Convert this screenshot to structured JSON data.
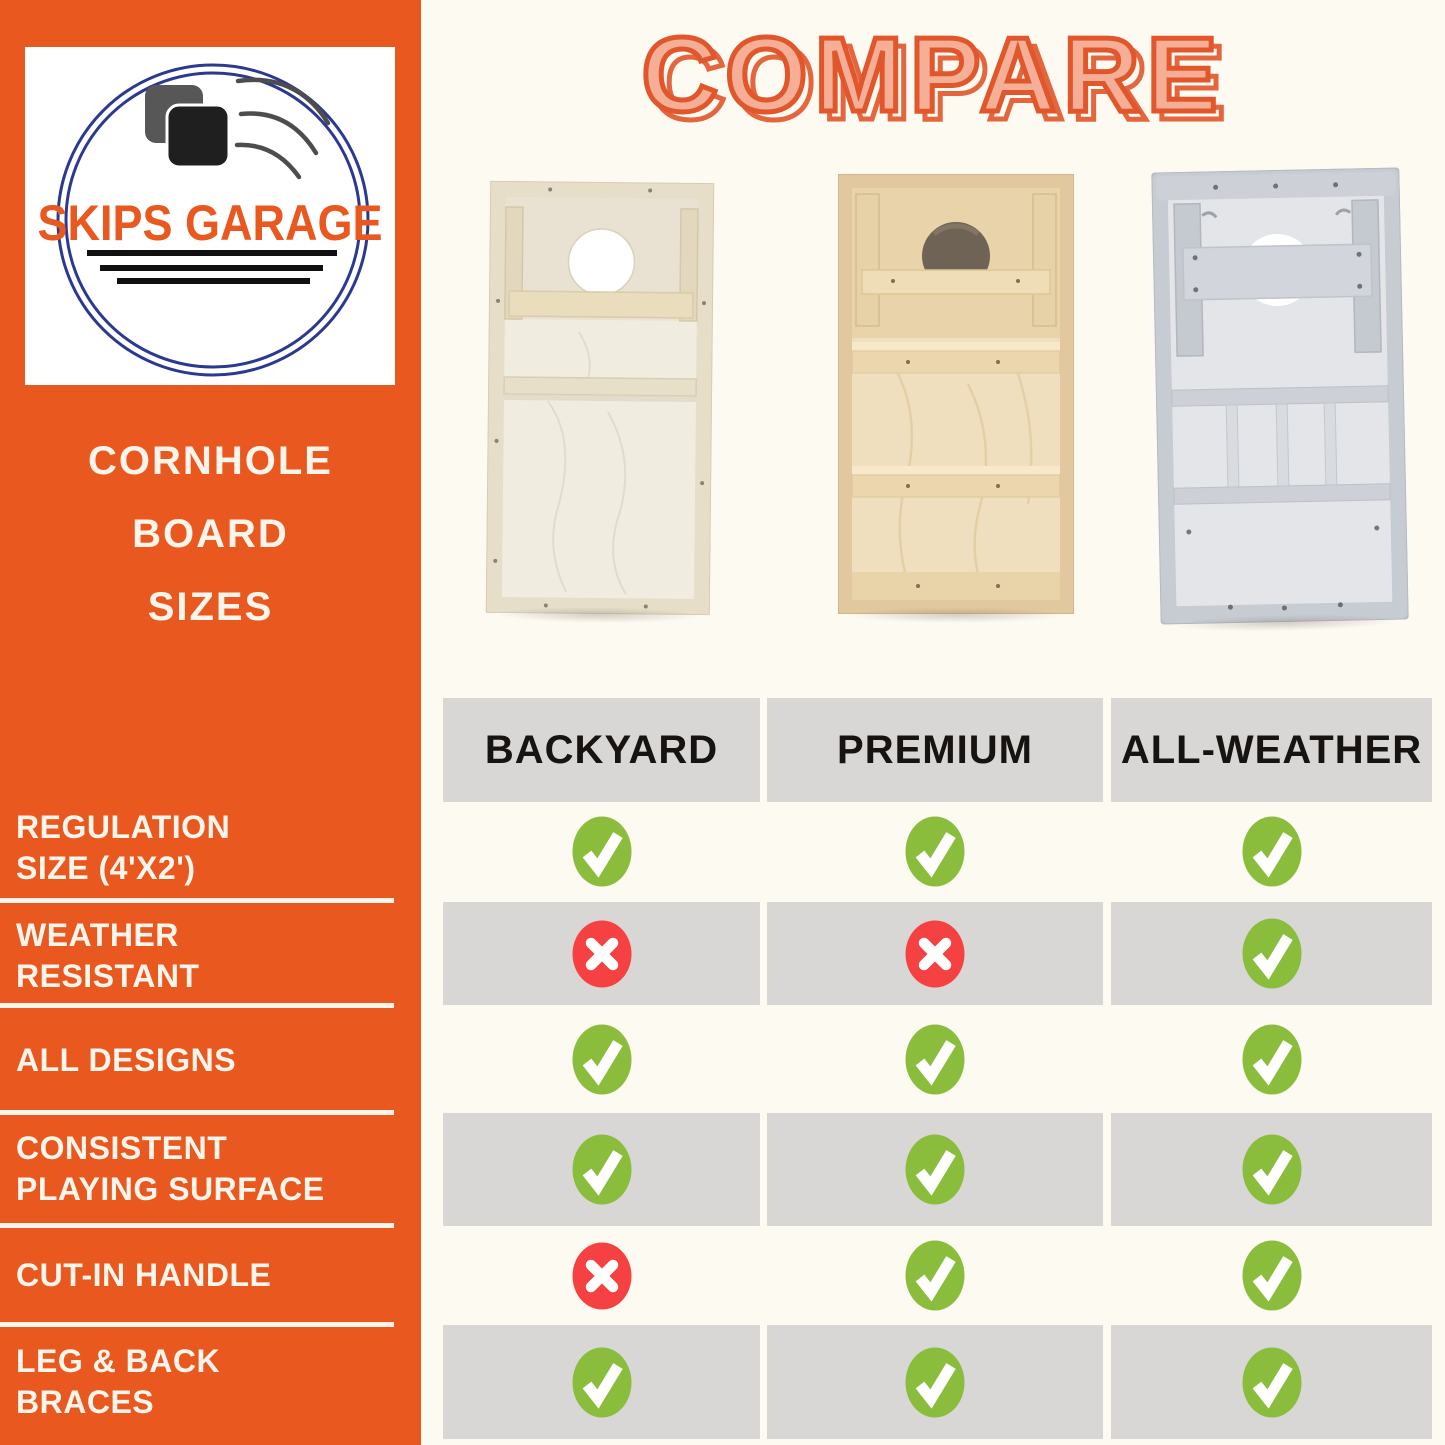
{
  "colors": {
    "sidebar_orange": "#E8581F",
    "background_cream": "#FDFAF2",
    "band_gray": "#D8D7D5",
    "logo_navy_ring": "#2B3990",
    "title_fill": "#F5AF97",
    "title_outline": "#E1562B",
    "label_cream": "#FBF5EC",
    "header_text": "#171310"
  },
  "icons": {
    "check": "green-circle-white-checkmark",
    "cross": "red-circle-white-x",
    "logo": "two-bean-bags-with-motion-swoosh"
  },
  "sidebar": {
    "logo": {
      "brand": "SKIPS GARAGE"
    },
    "title_lines": [
      "CORNHOLE",
      "BOARD",
      "SIZES"
    ]
  },
  "main": {
    "title": "COMPARE",
    "columns": [
      "BACKYARD",
      "PREMIUM",
      "ALL-WEATHER"
    ],
    "boards": [
      {
        "column": "BACKYARD",
        "description": "natural pine board, rear view"
      },
      {
        "column": "PREMIUM",
        "description": "warm pine board with shelf braces, rear view"
      },
      {
        "column": "ALL-WEATHER",
        "description": "gray painted board with braces, rear view"
      }
    ],
    "comparison": {
      "icon_colors": {
        "check": "#8ABD3C",
        "cross": "#F54141"
      },
      "rows": [
        {
          "label_lines": [
            "REGULATION",
            "SIZE (4'X2')"
          ],
          "values": [
            "check",
            "check",
            "check"
          ]
        },
        {
          "label_lines": [
            "WEATHER",
            "RESISTANT"
          ],
          "values": [
            "cross",
            "cross",
            "check"
          ]
        },
        {
          "label_lines": [
            "ALL DESIGNS"
          ],
          "values": [
            "check",
            "check",
            "check"
          ]
        },
        {
          "label_lines": [
            "CONSISTENT",
            "PLAYING SURFACE"
          ],
          "values": [
            "check",
            "check",
            "check"
          ]
        },
        {
          "label_lines": [
            "CUT-IN HANDLE"
          ],
          "values": [
            "cross",
            "check",
            "check"
          ]
        },
        {
          "label_lines": [
            "LEG & BACK",
            "BRACES"
          ],
          "values": [
            "check",
            "check",
            "check"
          ]
        }
      ]
    }
  }
}
